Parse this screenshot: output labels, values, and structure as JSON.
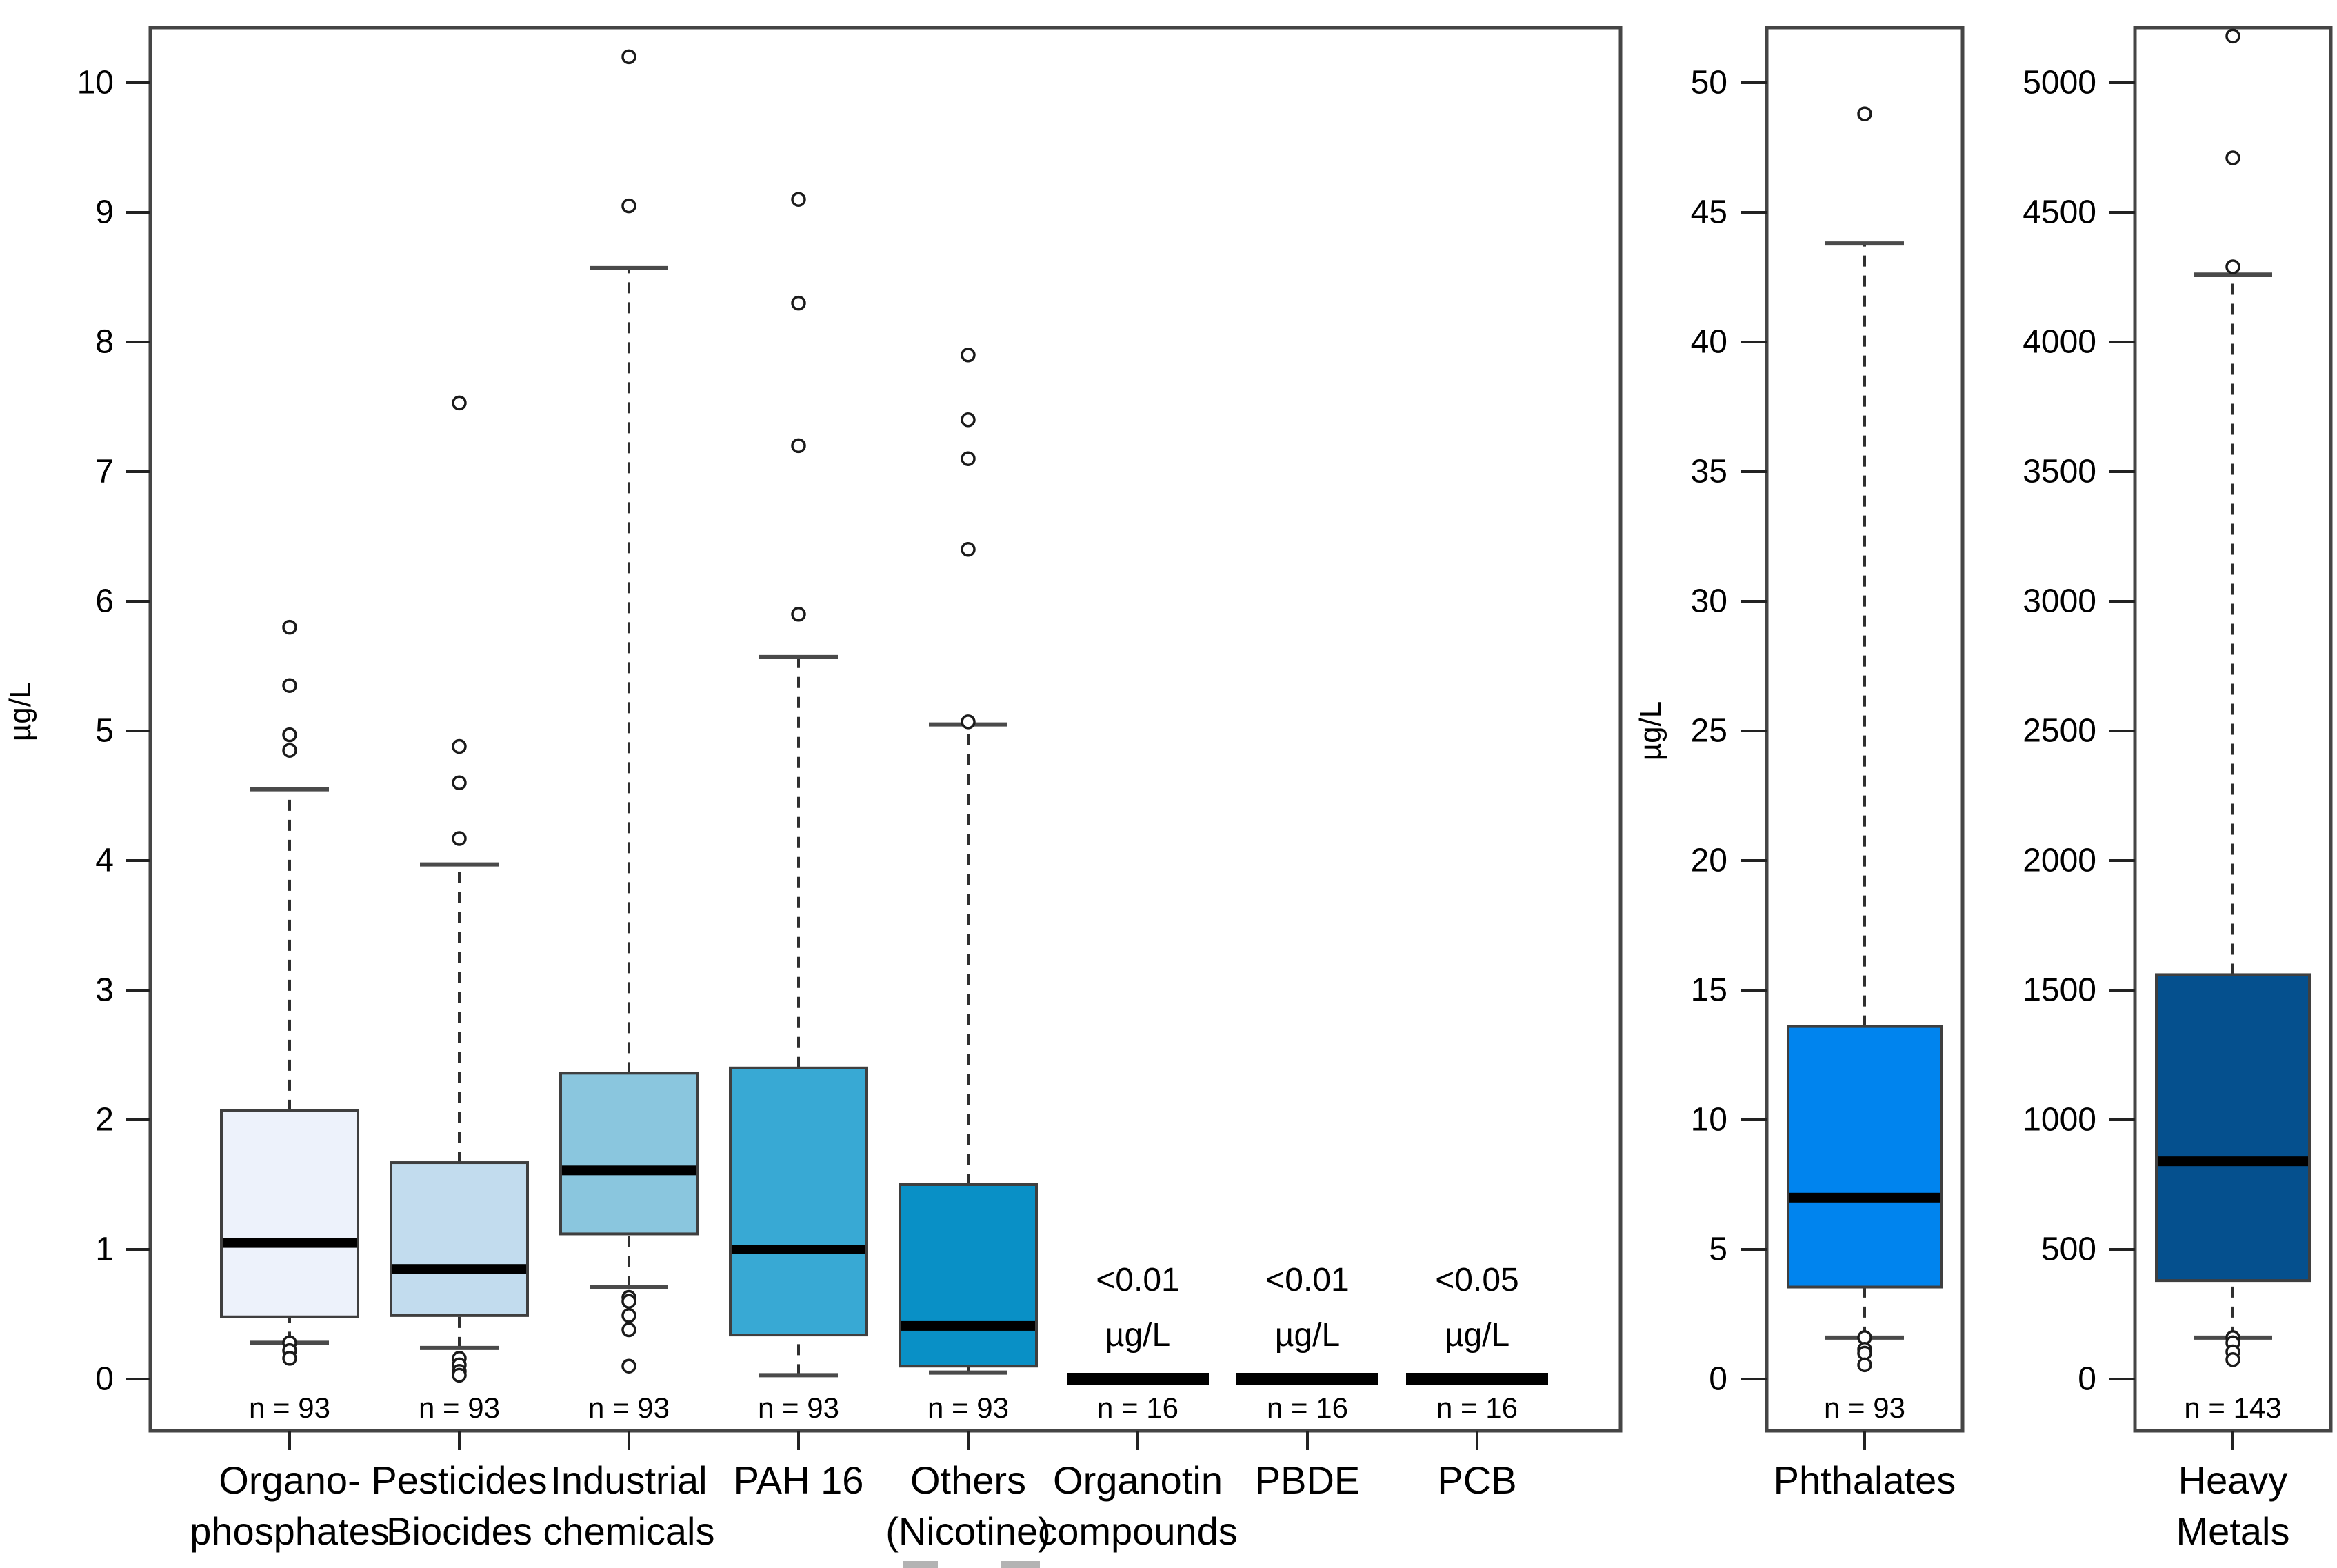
{
  "figure": {
    "unit_label": "µg/L",
    "artifact_note": "cropped-caption-marks"
  },
  "chart_data": {
    "type": "boxplot",
    "grid": false,
    "panels": [
      {
        "id": "main",
        "ylabel": "µg/L",
        "ylim": [
          0,
          10.5
        ],
        "yticks": [
          0,
          1,
          2,
          3,
          4,
          5,
          6,
          7,
          8,
          9,
          10
        ],
        "series": [
          {
            "category_lines": [
              "Organo-",
              "phosphates"
            ],
            "sample_label": "n = 93",
            "fill": "#EDF2FB",
            "stats": {
              "whisker_low": 0.28,
              "q1": 0.48,
              "median": 1.05,
              "q3": 2.07,
              "whisker_high": 4.55
            },
            "outliers_high": [
              4.85,
              4.97,
              5.35,
              5.8
            ],
            "outliers_low": [
              0.28,
              0.22,
              0.16
            ]
          },
          {
            "category_lines": [
              "Pesticides",
              "Biocides"
            ],
            "sample_label": "n = 93",
            "fill": "#C2DCEE",
            "stats": {
              "whisker_low": 0.24,
              "q1": 0.49,
              "median": 0.85,
              "q3": 1.67,
              "whisker_high": 3.97
            },
            "outliers_high": [
              4.17,
              4.6,
              4.88,
              7.53
            ],
            "outliers_low": [
              0.16,
              0.11,
              0.06,
              0.03
            ]
          },
          {
            "category_lines": [
              "Industrial",
              "chemicals"
            ],
            "sample_label": "n = 93",
            "fill": "#8AC6DE",
            "stats": {
              "whisker_low": 0.71,
              "q1": 1.12,
              "median": 1.61,
              "q3": 2.36,
              "whisker_high": 8.57
            },
            "outliers_high": [
              9.05,
              10.2
            ],
            "outliers_low": [
              0.63,
              0.6,
              0.49,
              0.38,
              0.1
            ]
          },
          {
            "category_lines": [
              "PAH 16"
            ],
            "sample_label": "n = 93",
            "fill": "#38A9D4",
            "stats": {
              "whisker_low": 0.03,
              "q1": 0.34,
              "median": 1.0,
              "q3": 2.4,
              "whisker_high": 5.57
            },
            "outliers_high": [
              5.9,
              7.2,
              8.3,
              9.1
            ],
            "outliers_low": []
          },
          {
            "category_lines": [
              "Others",
              "(Nicotine)"
            ],
            "sample_label": "n = 93",
            "fill": "#0990C6",
            "stats": {
              "whisker_low": 0.05,
              "q1": 0.1,
              "median": 0.41,
              "q3": 1.5,
              "whisker_high": 5.05
            },
            "outliers_high": [
              5.07,
              6.4,
              7.1,
              7.4,
              7.9
            ],
            "outliers_low": []
          },
          {
            "category_lines": [
              "Organotin",
              "compounds"
            ],
            "sample_label": "n = 16",
            "flat_bar": true,
            "annotation_lines": [
              "<0.01",
              "µg/L"
            ]
          },
          {
            "category_lines": [
              "PBDE"
            ],
            "sample_label": "n = 16",
            "flat_bar": true,
            "annotation_lines": [
              "<0.01",
              "µg/L"
            ]
          },
          {
            "category_lines": [
              "PCB"
            ],
            "sample_label": "n = 16",
            "flat_bar": true,
            "annotation_lines": [
              "<0.05",
              "µg/L"
            ]
          }
        ]
      },
      {
        "id": "phthalates",
        "ylabel": "µg/L",
        "ylim": [
          0,
          52
        ],
        "yticks": [
          0,
          5,
          10,
          15,
          20,
          25,
          30,
          35,
          40,
          45,
          50
        ],
        "series": [
          {
            "category_lines": [
              "Phthalates"
            ],
            "sample_label": "n = 93",
            "fill": "#0084EE",
            "stats": {
              "whisker_low": 1.6,
              "q1": 3.55,
              "median": 7.0,
              "q3": 13.6,
              "whisker_high": 43.8
            },
            "outliers_high": [
              48.8
            ],
            "outliers_low": [
              1.6,
              1.15,
              1.0,
              0.55
            ]
          }
        ]
      },
      {
        "id": "heavy-metals",
        "ylabel": "",
        "ylim": [
          0,
          5200
        ],
        "yticks": [
          0,
          500,
          1000,
          1500,
          2000,
          2500,
          3000,
          3500,
          4000,
          4500,
          5000
        ],
        "series": [
          {
            "category_lines": [
              "Heavy",
              "Metals"
            ],
            "sample_label": "n = 143",
            "fill": "#05508E",
            "stats": {
              "whisker_low": 160,
              "q1": 380,
              "median": 840,
              "q3": 1560,
              "whisker_high": 4260
            },
            "outliers_high": [
              4290,
              4710,
              5180
            ],
            "outliers_low": [
              160,
              140,
              105,
              75
            ]
          }
        ]
      }
    ]
  }
}
